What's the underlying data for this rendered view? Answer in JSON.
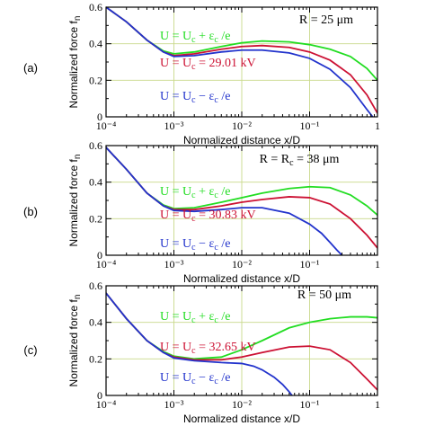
{
  "colors": {
    "green": "#22dd22",
    "red": "#cc1133",
    "blue": "#2233cc",
    "grid": "#c9d98a"
  },
  "chart_data": [
    {
      "type": "line",
      "panel_label": "(a)",
      "r_label": "R = 25 μm",
      "xlabel": "Normalized distance x/D",
      "ylabel": "Normalized force f_n",
      "xscale": "log",
      "xlim": [
        0.0001,
        1
      ],
      "ylim": [
        0,
        0.6
      ],
      "x_ticks": [
        "10⁻⁴",
        "10⁻³",
        "10⁻²",
        "10⁻¹",
        "1"
      ],
      "y_ticks": [
        "0",
        "0.2",
        "0.4",
        "0.6"
      ],
      "grid": true,
      "annotations": [
        "U = U_c + ε_c /e",
        "U = U_c = 29.01 kV",
        "U = U_c − ε_c /e"
      ],
      "series": [
        {
          "color": "green",
          "x": [
            0.0001,
            0.0002,
            0.0004,
            0.0007,
            0.001,
            0.002,
            0.005,
            0.01,
            0.02,
            0.05,
            0.1,
            0.2,
            0.4,
            0.7,
            1
          ],
          "values": [
            0.61,
            0.52,
            0.42,
            0.36,
            0.345,
            0.355,
            0.385,
            0.405,
            0.415,
            0.41,
            0.395,
            0.37,
            0.33,
            0.265,
            0.2
          ]
        },
        {
          "color": "red",
          "x": [
            0.0001,
            0.0002,
            0.0004,
            0.0007,
            0.001,
            0.002,
            0.005,
            0.01,
            0.02,
            0.05,
            0.1,
            0.2,
            0.4,
            0.7,
            1
          ],
          "values": [
            0.61,
            0.52,
            0.42,
            0.355,
            0.335,
            0.345,
            0.37,
            0.385,
            0.39,
            0.38,
            0.355,
            0.31,
            0.23,
            0.12,
            0.02
          ]
        },
        {
          "color": "blue",
          "x": [
            0.0001,
            0.0002,
            0.0004,
            0.0007,
            0.001,
            0.002,
            0.005,
            0.01,
            0.02,
            0.05,
            0.1,
            0.2,
            0.4,
            0.7,
            0.85
          ],
          "values": [
            0.61,
            0.52,
            0.42,
            0.355,
            0.33,
            0.335,
            0.355,
            0.365,
            0.365,
            0.35,
            0.32,
            0.26,
            0.16,
            0.04,
            0
          ]
        }
      ]
    },
    {
      "type": "line",
      "panel_label": "(b)",
      "r_label": "R = R_c = 38 μm",
      "xlabel": "Normalized distance x/D",
      "ylabel": "Normalized force f_n",
      "xscale": "log",
      "xlim": [
        0.0001,
        1
      ],
      "ylim": [
        0,
        0.6
      ],
      "x_ticks": [
        "10⁻⁴",
        "10⁻³",
        "10⁻²",
        "10⁻¹",
        "1"
      ],
      "y_ticks": [
        "0",
        "0.2",
        "0.4",
        "0.6"
      ],
      "grid": true,
      "annotations": [
        "U = U_c + ε_c /e",
        "U = U_c = 30.83 kV",
        "U = U_c − ε_c /e"
      ],
      "series": [
        {
          "color": "green",
          "x": [
            0.0001,
            0.0002,
            0.0004,
            0.0007,
            0.001,
            0.002,
            0.005,
            0.01,
            0.02,
            0.05,
            0.1,
            0.2,
            0.4,
            0.7,
            1
          ],
          "values": [
            0.59,
            0.47,
            0.34,
            0.275,
            0.255,
            0.26,
            0.29,
            0.315,
            0.34,
            0.365,
            0.375,
            0.37,
            0.33,
            0.27,
            0.22
          ]
        },
        {
          "color": "red",
          "x": [
            0.0001,
            0.0002,
            0.0004,
            0.0007,
            0.001,
            0.002,
            0.005,
            0.01,
            0.02,
            0.05,
            0.1,
            0.2,
            0.4,
            0.7,
            1
          ],
          "values": [
            0.59,
            0.47,
            0.34,
            0.27,
            0.25,
            0.25,
            0.27,
            0.29,
            0.305,
            0.32,
            0.315,
            0.28,
            0.2,
            0.11,
            0.04
          ]
        },
        {
          "color": "blue",
          "x": [
            0.0001,
            0.0002,
            0.0004,
            0.0007,
            0.001,
            0.002,
            0.005,
            0.01,
            0.02,
            0.05,
            0.1,
            0.15,
            0.2,
            0.25,
            0.3
          ],
          "values": [
            0.59,
            0.47,
            0.34,
            0.27,
            0.245,
            0.24,
            0.25,
            0.26,
            0.26,
            0.23,
            0.17,
            0.12,
            0.07,
            0.03,
            0
          ]
        }
      ]
    },
    {
      "type": "line",
      "panel_label": "(c)",
      "r_label": "R = 50 μm",
      "xlabel": "Normalized distance x/D",
      "ylabel": "Normalized force f_n",
      "xscale": "log",
      "xlim": [
        0.0001,
        1
      ],
      "ylim": [
        0,
        0.6
      ],
      "x_ticks": [
        "10⁻⁴",
        "10⁻³",
        "10⁻²",
        "10⁻¹",
        "1"
      ],
      "y_ticks": [
        "0",
        "0.2",
        "0.4",
        "0.6"
      ],
      "grid": true,
      "annotations": [
        "U = U_c + ε_c /e",
        "U = U_c = 32.65 kV",
        "U = U_c − ε_c /e"
      ],
      "series": [
        {
          "color": "green",
          "x": [
            0.0001,
            0.0002,
            0.0004,
            0.0007,
            0.001,
            0.002,
            0.005,
            0.01,
            0.02,
            0.05,
            0.1,
            0.2,
            0.4,
            0.7,
            1
          ],
          "values": [
            0.56,
            0.42,
            0.3,
            0.24,
            0.215,
            0.2,
            0.21,
            0.25,
            0.3,
            0.37,
            0.4,
            0.42,
            0.43,
            0.43,
            0.425
          ]
        },
        {
          "color": "red",
          "x": [
            0.0001,
            0.0002,
            0.0004,
            0.0007,
            0.001,
            0.002,
            0.005,
            0.01,
            0.02,
            0.05,
            0.1,
            0.2,
            0.4,
            0.7,
            1
          ],
          "values": [
            0.56,
            0.42,
            0.3,
            0.235,
            0.21,
            0.195,
            0.195,
            0.21,
            0.235,
            0.265,
            0.27,
            0.25,
            0.18,
            0.09,
            0.03
          ]
        },
        {
          "color": "blue",
          "x": [
            0.0001,
            0.0002,
            0.0004,
            0.0007,
            0.001,
            0.002,
            0.005,
            0.01,
            0.015,
            0.02,
            0.03,
            0.04,
            0.05,
            0.055
          ],
          "values": [
            0.56,
            0.42,
            0.3,
            0.235,
            0.205,
            0.19,
            0.18,
            0.175,
            0.16,
            0.14,
            0.1,
            0.06,
            0.02,
            0
          ]
        }
      ]
    }
  ]
}
